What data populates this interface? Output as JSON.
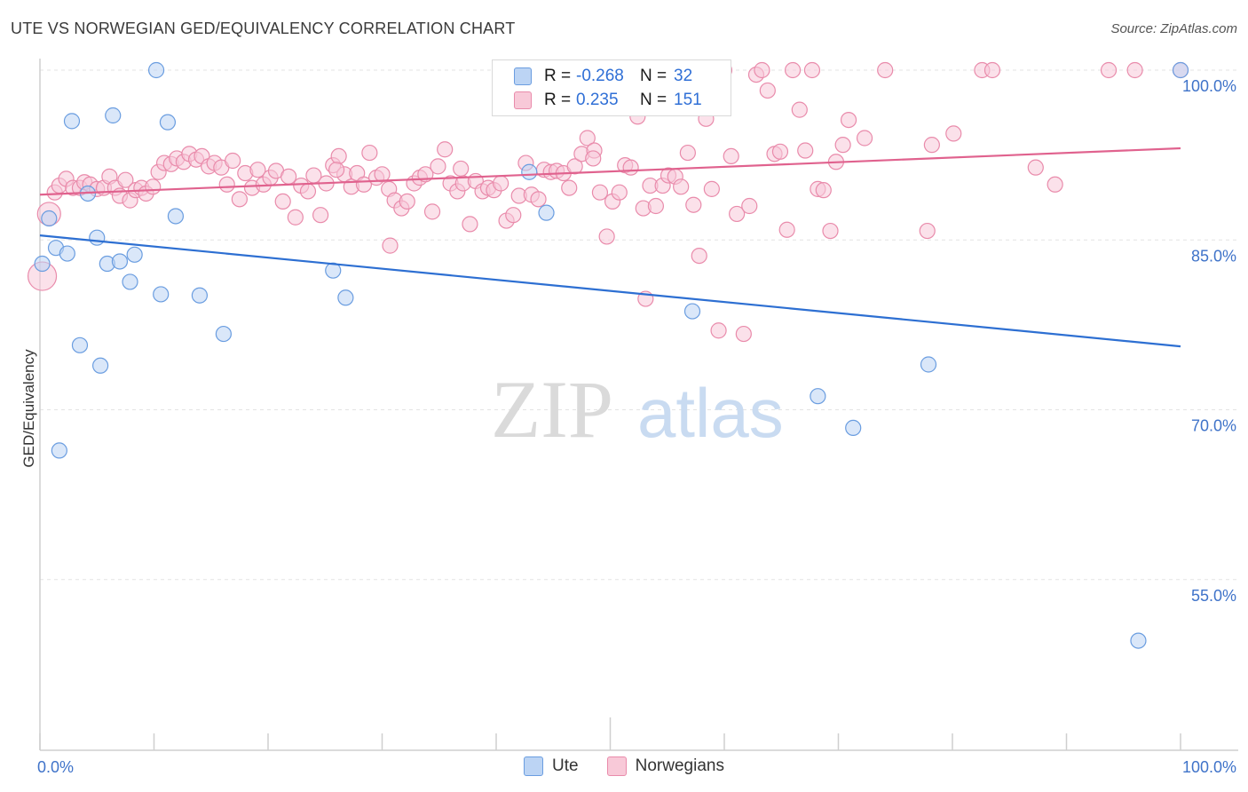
{
  "title": "UTE VS NORWEGIAN GED/EQUIVALENCY CORRELATION CHART",
  "source": "Source: ZipAtlas.com",
  "watermark": {
    "zip": "ZIP",
    "atlas": "atlas"
  },
  "legend": {
    "rows": [
      {
        "r_label": "R =",
        "r_value": "-0.268",
        "n_label": "N =",
        "n_value": "32"
      },
      {
        "r_label": "R =",
        "r_value": "0.235",
        "n_label": "N =",
        "n_value": "151"
      }
    ]
  },
  "bottom_legend": {
    "ute": "Ute",
    "norwegians": "Norwegians"
  },
  "colors": {
    "ute_fill": "#bcd4f4",
    "ute_stroke": "#6a9de0",
    "ute_line": "#2d6fd2",
    "nor_fill": "#f8c9d8",
    "nor_stroke": "#e98bab",
    "nor_line": "#e0628e",
    "tick_text": "#3f73c9",
    "grid": "#e3e3e3"
  },
  "chart_data": {
    "type": "scatter",
    "title": "UTE VS NORWEGIAN GED/EQUIVALENCY CORRELATION CHART",
    "xlabel": "",
    "ylabel": "GED/Equivalency",
    "xlim": [
      0,
      100
    ],
    "ylim": [
      40,
      105
    ],
    "x_tick_labels": [
      "0.0%",
      "100.0%"
    ],
    "y_ticks": [
      55,
      70,
      85,
      100
    ],
    "y_tick_labels": [
      "55.0%",
      "70.0%",
      "85.0%",
      "100.0%"
    ],
    "grid": true,
    "legend_position": "top-center",
    "series": [
      {
        "name": "Ute",
        "trend": {
          "x": [
            0,
            100
          ],
          "y": [
            85.4,
            75.6
          ]
        },
        "points": [
          [
            0.2,
            82.9
          ],
          [
            0.8,
            86.9
          ],
          [
            1.4,
            84.3
          ],
          [
            1.7,
            66.4
          ],
          [
            2.4,
            83.8
          ],
          [
            2.8,
            95.5
          ],
          [
            3.5,
            75.7
          ],
          [
            4.2,
            89.1
          ],
          [
            5.0,
            85.2
          ],
          [
            5.3,
            73.9
          ],
          [
            5.9,
            82.9
          ],
          [
            6.4,
            96.0
          ],
          [
            7.0,
            83.1
          ],
          [
            7.9,
            81.3
          ],
          [
            8.3,
            83.7
          ],
          [
            10.2,
            100.0
          ],
          [
            10.6,
            80.2
          ],
          [
            11.2,
            95.4
          ],
          [
            11.9,
            87.1
          ],
          [
            14.0,
            80.1
          ],
          [
            16.1,
            76.7
          ],
          [
            25.7,
            82.3
          ],
          [
            26.8,
            79.9
          ],
          [
            42.9,
            91.0
          ],
          [
            44.4,
            87.4
          ],
          [
            52.2,
            100.0
          ],
          [
            57.2,
            78.7
          ],
          [
            68.2,
            71.2
          ],
          [
            71.3,
            68.4
          ],
          [
            77.9,
            74.0
          ],
          [
            96.3,
            49.6
          ],
          [
            100.0,
            100.0
          ]
        ]
      },
      {
        "name": "Norwegians",
        "trend": {
          "x": [
            0,
            100
          ],
          "y": [
            89.0,
            93.1
          ]
        },
        "points": [
          [
            0.2,
            81.8
          ],
          [
            0.8,
            87.3
          ],
          [
            1.3,
            89.2
          ],
          [
            1.7,
            89.8
          ],
          [
            2.3,
            90.4
          ],
          [
            2.9,
            89.6
          ],
          [
            3.5,
            89.6
          ],
          [
            3.9,
            90.1
          ],
          [
            4.4,
            89.9
          ],
          [
            5.0,
            89.5
          ],
          [
            5.6,
            89.6
          ],
          [
            6.1,
            90.6
          ],
          [
            6.6,
            89.6
          ],
          [
            7.0,
            88.9
          ],
          [
            7.5,
            90.3
          ],
          [
            7.9,
            88.5
          ],
          [
            8.4,
            89.4
          ],
          [
            8.9,
            89.6
          ],
          [
            9.3,
            89.1
          ],
          [
            9.9,
            89.7
          ],
          [
            10.4,
            91.0
          ],
          [
            10.9,
            91.8
          ],
          [
            11.5,
            91.7
          ],
          [
            12.0,
            92.2
          ],
          [
            12.6,
            91.9
          ],
          [
            13.1,
            92.6
          ],
          [
            13.7,
            92.1
          ],
          [
            14.2,
            92.4
          ],
          [
            14.8,
            91.5
          ],
          [
            15.3,
            91.8
          ],
          [
            15.9,
            91.4
          ],
          [
            16.4,
            89.9
          ],
          [
            16.9,
            92.0
          ],
          [
            17.5,
            88.6
          ],
          [
            18.0,
            90.9
          ],
          [
            18.6,
            89.6
          ],
          [
            19.1,
            91.2
          ],
          [
            19.6,
            89.9
          ],
          [
            20.2,
            90.5
          ],
          [
            20.7,
            91.1
          ],
          [
            21.3,
            88.4
          ],
          [
            21.8,
            90.6
          ],
          [
            22.4,
            87.0
          ],
          [
            22.9,
            89.8
          ],
          [
            23.5,
            89.3
          ],
          [
            24.0,
            90.7
          ],
          [
            24.6,
            87.2
          ],
          [
            25.1,
            90.0
          ],
          [
            25.7,
            91.6
          ],
          [
            26.2,
            92.4
          ],
          [
            26.7,
            90.8
          ],
          [
            27.3,
            89.7
          ],
          [
            27.8,
            90.9
          ],
          [
            28.4,
            89.9
          ],
          [
            28.9,
            92.7
          ],
          [
            29.5,
            90.5
          ],
          [
            30.0,
            90.8
          ],
          [
            30.6,
            89.5
          ],
          [
            31.1,
            88.5
          ],
          [
            31.7,
            87.8
          ],
          [
            32.2,
            88.4
          ],
          [
            32.8,
            90.0
          ],
          [
            33.3,
            90.5
          ],
          [
            33.8,
            90.8
          ],
          [
            34.4,
            87.5
          ],
          [
            34.9,
            91.5
          ],
          [
            35.5,
            93.0
          ],
          [
            36.0,
            90.0
          ],
          [
            36.6,
            89.3
          ],
          [
            37.1,
            90.0
          ],
          [
            37.7,
            86.4
          ],
          [
            38.2,
            90.2
          ],
          [
            38.8,
            89.3
          ],
          [
            39.3,
            89.6
          ],
          [
            39.8,
            89.4
          ],
          [
            40.4,
            90.0
          ],
          [
            40.9,
            86.7
          ],
          [
            41.5,
            87.2
          ],
          [
            42.0,
            88.9
          ],
          [
            42.6,
            91.8
          ],
          [
            43.1,
            89.0
          ],
          [
            43.7,
            88.6
          ],
          [
            44.2,
            91.2
          ],
          [
            44.8,
            91.0
          ],
          [
            45.3,
            91.1
          ],
          [
            45.9,
            90.9
          ],
          [
            46.4,
            89.6
          ],
          [
            46.9,
            91.5
          ],
          [
            47.5,
            92.6
          ],
          [
            48.0,
            94.0
          ],
          [
            48.6,
            92.9
          ],
          [
            49.1,
            89.2
          ],
          [
            49.7,
            85.3
          ],
          [
            50.2,
            88.4
          ],
          [
            50.8,
            89.2
          ],
          [
            51.3,
            91.6
          ],
          [
            51.8,
            91.4
          ],
          [
            52.4,
            95.9
          ],
          [
            52.9,
            87.8
          ],
          [
            53.5,
            89.8
          ],
          [
            54.0,
            88.0
          ],
          [
            54.6,
            89.8
          ],
          [
            55.1,
            90.7
          ],
          [
            55.7,
            90.6
          ],
          [
            56.2,
            89.7
          ],
          [
            56.8,
            92.7
          ],
          [
            57.3,
            88.1
          ],
          [
            57.8,
            83.6
          ],
          [
            58.4,
            95.7
          ],
          [
            58.9,
            89.5
          ],
          [
            59.5,
            77.0
          ],
          [
            60.0,
            100.0
          ],
          [
            60.6,
            92.4
          ],
          [
            61.1,
            87.3
          ],
          [
            61.7,
            76.7
          ],
          [
            62.2,
            88.0
          ],
          [
            62.8,
            99.6
          ],
          [
            63.3,
            100.0
          ],
          [
            63.8,
            98.2
          ],
          [
            64.4,
            92.6
          ],
          [
            64.9,
            92.8
          ],
          [
            65.5,
            85.9
          ],
          [
            66.0,
            100.0
          ],
          [
            66.6,
            96.5
          ],
          [
            67.1,
            92.9
          ],
          [
            67.7,
            100.0
          ],
          [
            68.2,
            89.5
          ],
          [
            68.7,
            89.4
          ],
          [
            69.3,
            85.8
          ],
          [
            69.8,
            91.9
          ],
          [
            70.4,
            93.4
          ],
          [
            70.9,
            95.6
          ],
          [
            72.3,
            94.0
          ],
          [
            74.1,
            100.0
          ],
          [
            77.8,
            85.8
          ],
          [
            78.2,
            93.4
          ],
          [
            80.1,
            94.4
          ],
          [
            82.6,
            100.0
          ],
          [
            83.5,
            100.0
          ],
          [
            87.3,
            91.4
          ],
          [
            89.0,
            89.9
          ],
          [
            93.7,
            100.0
          ],
          [
            96.0,
            100.0
          ],
          [
            100.0,
            100.0
          ],
          [
            53.1,
            79.8
          ],
          [
            48.5,
            92.2
          ],
          [
            26.0,
            91.2
          ],
          [
            36.9,
            91.3
          ],
          [
            30.7,
            84.5
          ]
        ]
      }
    ]
  }
}
